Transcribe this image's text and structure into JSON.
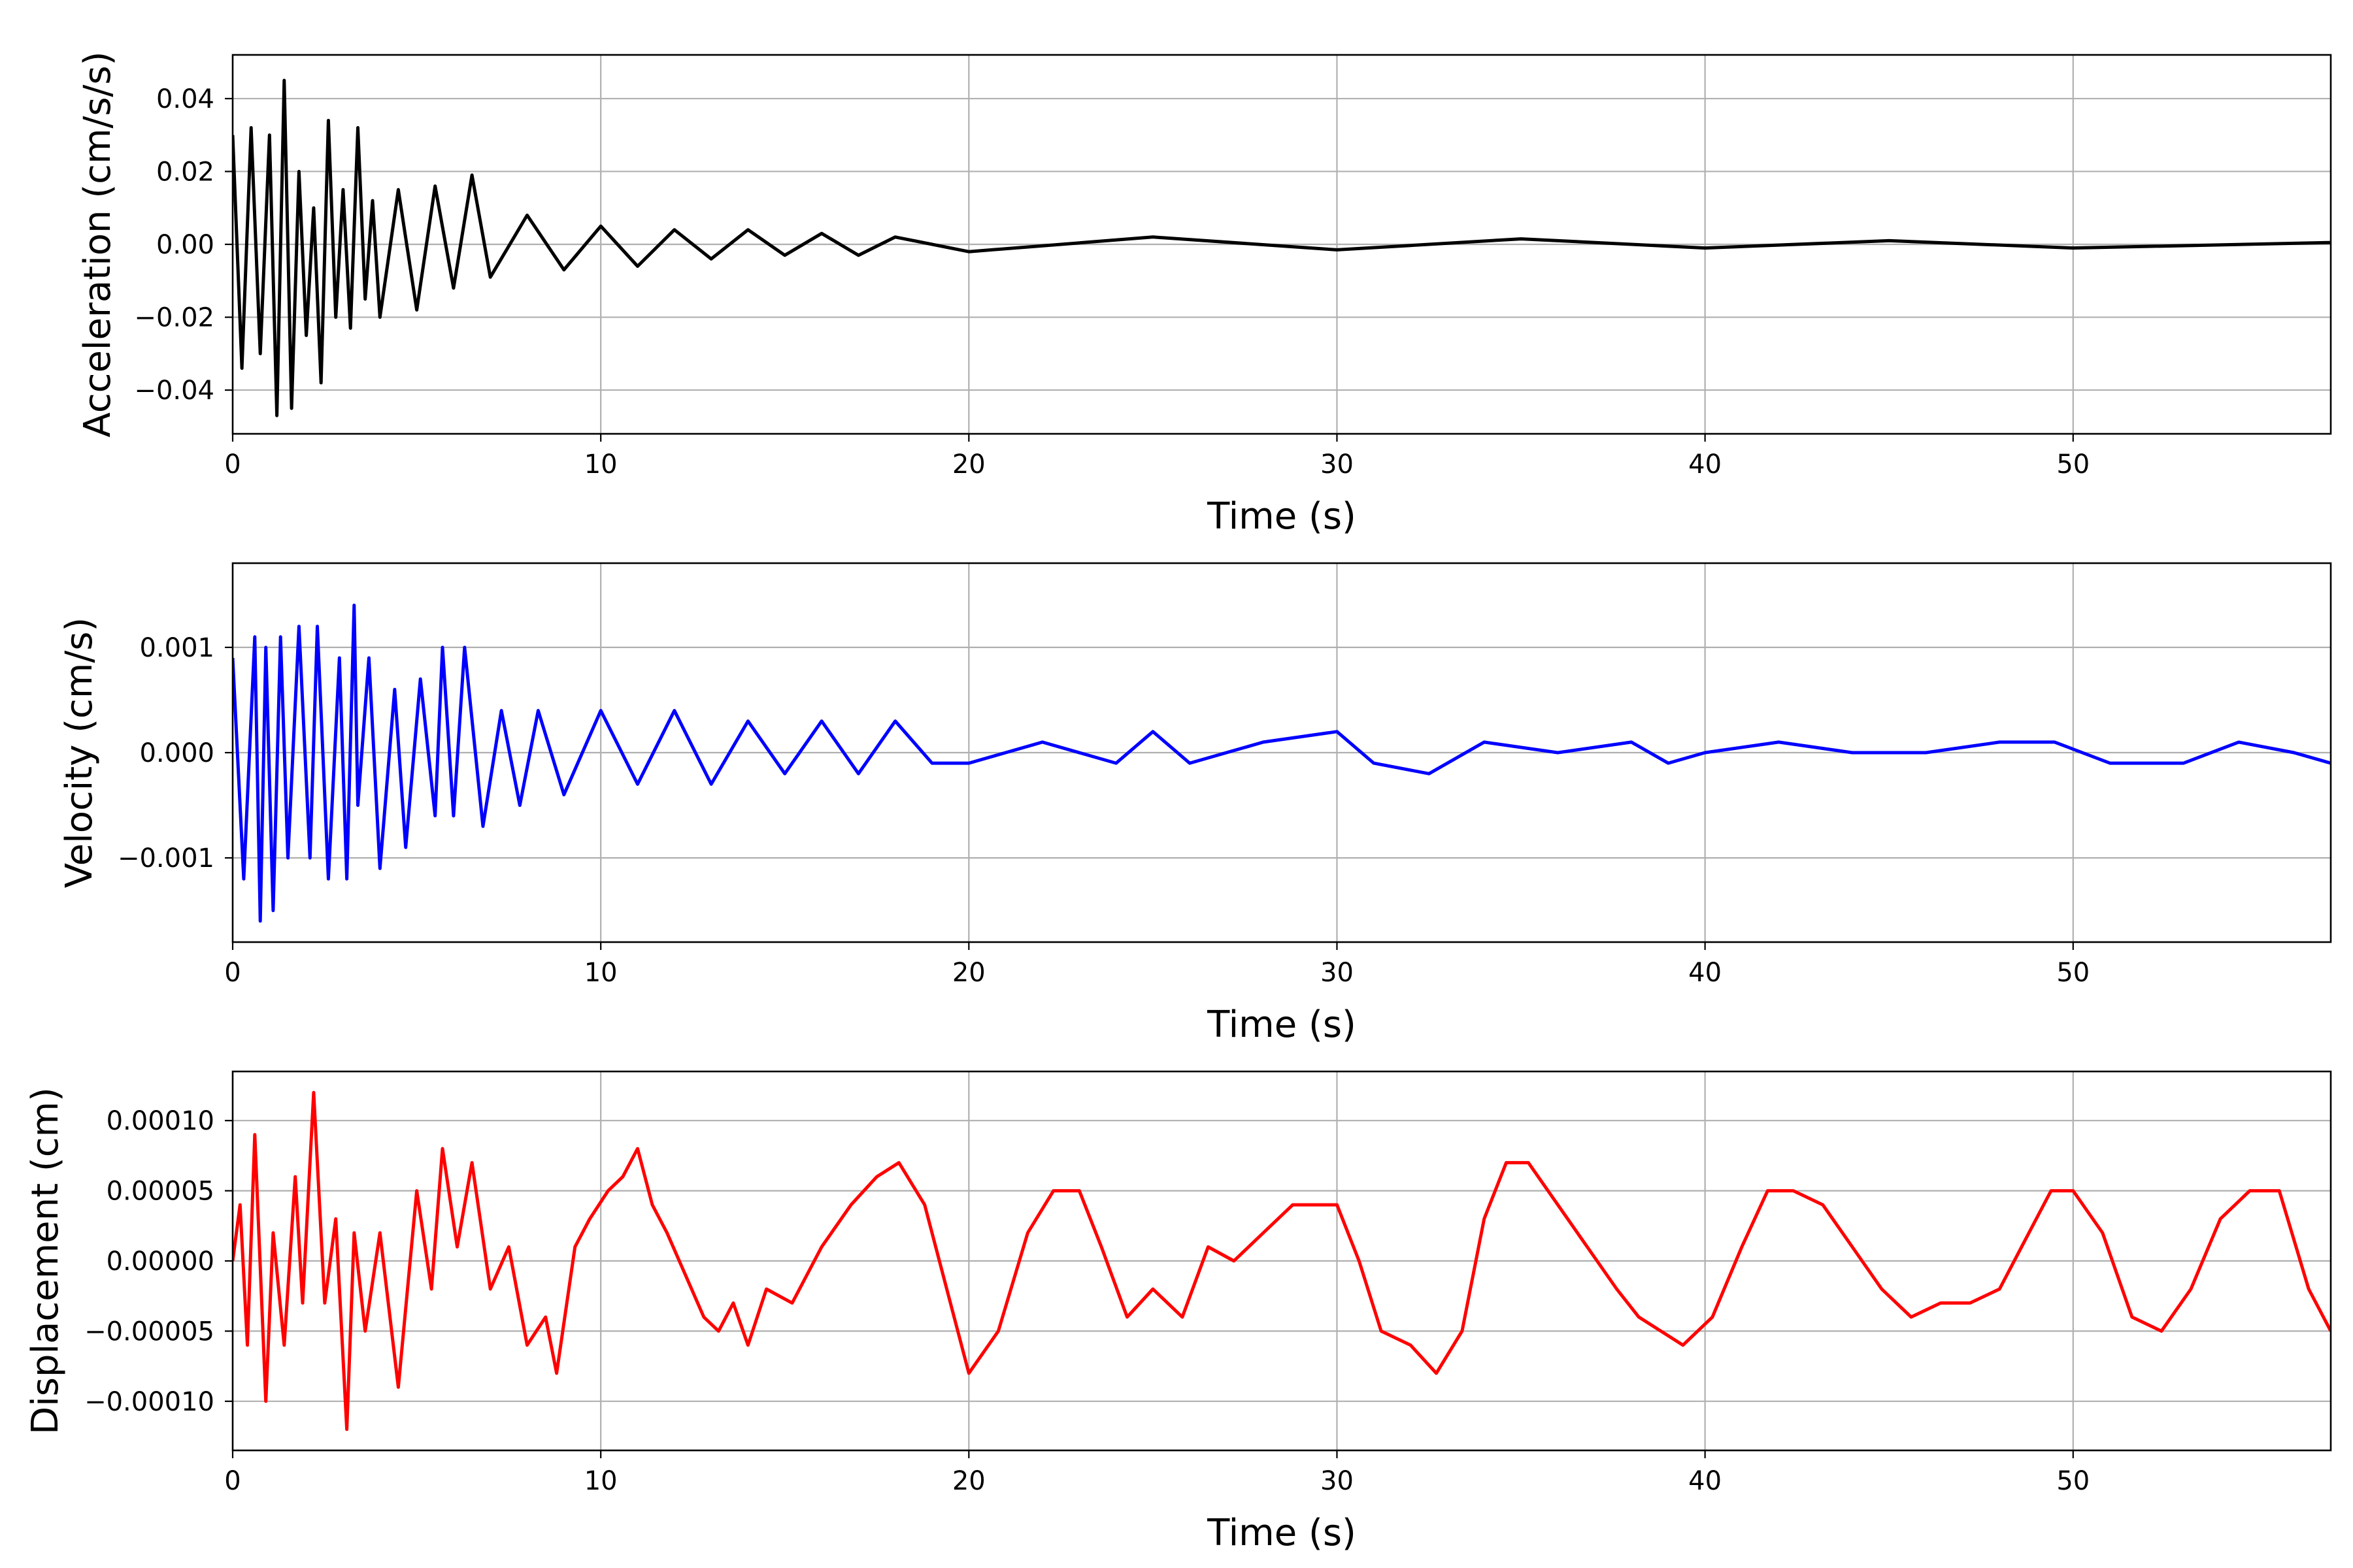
{
  "chart_data": [
    {
      "type": "line",
      "xlabel": "Time (s)",
      "ylabel": "Acceleration (cm/s/s)",
      "xlim": [
        0,
        57
      ],
      "ylim": [
        -0.052,
        0.052
      ],
      "xticks": [
        0,
        10,
        20,
        30,
        40,
        50
      ],
      "yticks": [
        -0.04,
        -0.02,
        0.0,
        0.02,
        0.04
      ],
      "ytick_labels": [
        "−0.04",
        "−0.02",
        "0.00",
        "0.02",
        "0.04"
      ],
      "grid": true,
      "series": [
        {
          "color": "#000000",
          "x": [
            0,
            0.25,
            0.5,
            0.75,
            1.0,
            1.2,
            1.4,
            1.6,
            1.8,
            2.0,
            2.2,
            2.4,
            2.6,
            2.8,
            3.0,
            3.2,
            3.4,
            3.6,
            3.8,
            4.0,
            4.5,
            5.0,
            5.5,
            6.0,
            6.5,
            7.0,
            8.0,
            9.0,
            10.0,
            11.0,
            12.0,
            13.0,
            14.0,
            15.0,
            16.0,
            17.0,
            18.0,
            20.0,
            25.0,
            30.0,
            35.0,
            40.0,
            45.0,
            50.0,
            57.0
          ],
          "y": [
            0.03,
            -0.034,
            0.032,
            -0.03,
            0.03,
            -0.047,
            0.045,
            -0.045,
            0.02,
            -0.025,
            0.01,
            -0.038,
            0.034,
            -0.02,
            0.015,
            -0.023,
            0.032,
            -0.015,
            0.012,
            -0.02,
            0.015,
            -0.018,
            0.016,
            -0.012,
            0.019,
            -0.009,
            0.008,
            -0.007,
            0.005,
            -0.006,
            0.004,
            -0.004,
            0.004,
            -0.003,
            0.003,
            -0.003,
            0.002,
            -0.002,
            0.002,
            -0.0015,
            0.0015,
            -0.001,
            0.001,
            -0.001,
            0.0005
          ]
        }
      ]
    },
    {
      "type": "line",
      "xlabel": "Time (s)",
      "ylabel": "Velocity (cm/s)",
      "xlim": [
        0,
        57
      ],
      "ylim": [
        -0.0018,
        0.0018
      ],
      "xticks": [
        0,
        10,
        20,
        30,
        40,
        50
      ],
      "yticks": [
        -0.001,
        0.0,
        0.001
      ],
      "ytick_labels": [
        "−0.001",
        "0.000",
        "0.001"
      ],
      "grid": true,
      "series": [
        {
          "color": "#0000ff",
          "x": [
            0,
            0.3,
            0.6,
            0.75,
            0.9,
            1.1,
            1.3,
            1.5,
            1.8,
            2.1,
            2.3,
            2.6,
            2.9,
            3.1,
            3.3,
            3.4,
            3.7,
            4.0,
            4.4,
            4.7,
            5.1,
            5.5,
            5.7,
            6.0,
            6.3,
            6.8,
            7.3,
            7.8,
            8.3,
            9.0,
            10.0,
            11.0,
            12.0,
            13.0,
            14.0,
            15.0,
            16.0,
            17.0,
            18.0,
            19.0,
            20.0,
            22.0,
            24.0,
            25.0,
            26.0,
            28.0,
            30.0,
            31.0,
            32.5,
            34.0,
            36.0,
            38.0,
            39.0,
            40.0,
            42.0,
            44.0,
            46.0,
            48.0,
            49.5,
            51.0,
            53.0,
            54.5,
            56.0,
            57.0
          ],
          "y": [
            0.0009,
            -0.0012,
            0.0011,
            -0.0016,
            0.001,
            -0.0015,
            0.0011,
            -0.001,
            0.0012,
            -0.001,
            0.0012,
            -0.0012,
            0.0009,
            -0.0012,
            0.0014,
            -0.0005,
            0.0009,
            -0.0011,
            0.0006,
            -0.0009,
            0.0007,
            -0.0006,
            0.001,
            -0.0006,
            0.001,
            -0.0007,
            0.0004,
            -0.0005,
            0.0004,
            -0.0004,
            0.0004,
            -0.0003,
            0.0004,
            -0.0003,
            0.0003,
            -0.0002,
            0.0003,
            -0.0002,
            0.0003,
            -0.0001,
            -0.0001,
            0.0001,
            -0.0001,
            0.0002,
            -0.0001,
            0.0001,
            0.0002,
            -0.0001,
            -0.0002,
            0.0001,
            0.0,
            0.0001,
            -0.0001,
            0.0,
            0.0001,
            0.0,
            0.0,
            0.0001,
            0.0001,
            -0.0001,
            -0.0001,
            0.0001,
            0.0,
            -0.0001
          ]
        }
      ]
    },
    {
      "type": "line",
      "xlabel": "Time (s)",
      "ylabel": "Displacement (cm)",
      "xlim": [
        0,
        57
      ],
      "ylim": [
        -0.000135,
        0.000135
      ],
      "xticks": [
        0,
        10,
        20,
        30,
        40,
        50
      ],
      "yticks": [
        -0.0001,
        -5e-05,
        0.0,
        5e-05,
        0.0001
      ],
      "ytick_labels": [
        "−0.00010",
        "−0.00005",
        "0.00000",
        "0.00005",
        "0.00010"
      ],
      "grid": true,
      "series": [
        {
          "color": "#ff0000",
          "x": [
            0,
            0.2,
            0.4,
            0.6,
            0.9,
            1.1,
            1.4,
            1.7,
            1.9,
            2.2,
            2.5,
            2.8,
            3.1,
            3.3,
            3.6,
            4.0,
            4.5,
            5.0,
            5.4,
            5.7,
            6.1,
            6.5,
            7.0,
            7.5,
            8.0,
            8.5,
            8.8,
            9.3,
            9.7,
            10.2,
            10.6,
            11.0,
            11.4,
            11.8,
            12.3,
            12.8,
            13.2,
            13.6,
            14.0,
            14.5,
            15.2,
            16.0,
            16.8,
            17.5,
            18.1,
            18.8,
            19.4,
            20.0,
            20.8,
            21.6,
            22.3,
            23.0,
            23.6,
            24.3,
            25.0,
            25.8,
            26.5,
            27.2,
            28.0,
            28.8,
            29.4,
            30.0,
            30.6,
            31.2,
            32.0,
            32.7,
            33.4,
            34.0,
            34.6,
            35.2,
            36.0,
            36.8,
            37.6,
            38.2,
            38.8,
            39.4,
            40.2,
            41.0,
            41.7,
            42.4,
            43.2,
            44.0,
            44.8,
            45.6,
            46.4,
            47.2,
            48.0,
            48.8,
            49.4,
            50.0,
            50.8,
            51.6,
            52.4,
            53.2,
            54.0,
            54.8,
            55.6,
            56.4,
            57.0
          ],
          "y": [
            0.0,
            4e-05,
            -6e-05,
            9e-05,
            -0.0001,
            2e-05,
            -6e-05,
            6e-05,
            -3e-05,
            0.00012,
            -3e-05,
            3e-05,
            -0.00012,
            2e-05,
            -5e-05,
            2e-05,
            -9e-05,
            5e-05,
            -2e-05,
            8e-05,
            1e-05,
            7e-05,
            -2e-05,
            1e-05,
            -6e-05,
            -4e-05,
            -8e-05,
            1e-05,
            3e-05,
            5e-05,
            6e-05,
            8e-05,
            4e-05,
            2e-05,
            -1e-05,
            -4e-05,
            -5e-05,
            -3e-05,
            -6e-05,
            -2e-05,
            -3e-05,
            1e-05,
            4e-05,
            6e-05,
            7e-05,
            4e-05,
            -2e-05,
            -8e-05,
            -5e-05,
            2e-05,
            5e-05,
            5e-05,
            1e-05,
            -4e-05,
            -2e-05,
            -4e-05,
            1e-05,
            0.0,
            2e-05,
            4e-05,
            4e-05,
            4e-05,
            0.0,
            -5e-05,
            -6e-05,
            -8e-05,
            -5e-05,
            3e-05,
            7e-05,
            7e-05,
            4e-05,
            1e-05,
            -2e-05,
            -4e-05,
            -5e-05,
            -6e-05,
            -4e-05,
            1e-05,
            5e-05,
            5e-05,
            4e-05,
            1e-05,
            -2e-05,
            -4e-05,
            -3e-05,
            -3e-05,
            -2e-05,
            2e-05,
            5e-05,
            5e-05,
            2e-05,
            -4e-05,
            -5e-05,
            -2e-05,
            3e-05,
            5e-05,
            5e-05,
            -2e-05,
            -5e-05
          ]
        }
      ]
    }
  ]
}
